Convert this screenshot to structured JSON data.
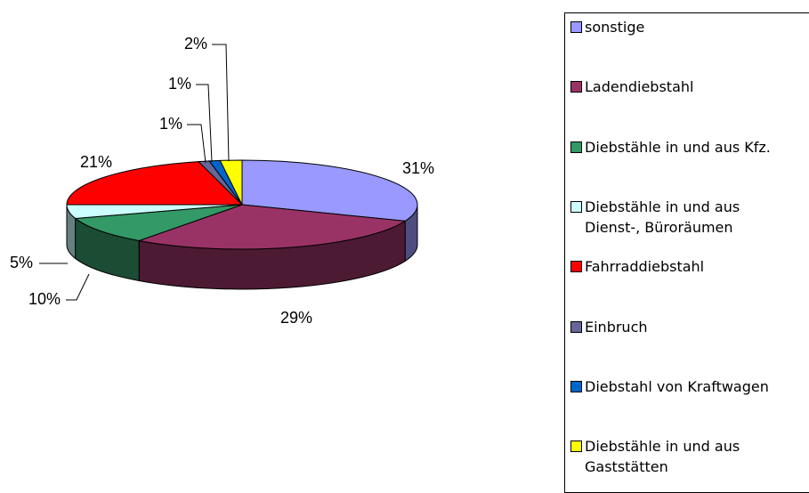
{
  "chart_data": {
    "type": "pie",
    "categories": [
      "sonstige",
      "Ladendiebstahl",
      "Diebstähle in und aus Kfz.",
      "Diebstähle in und aus Dienst-, Büroräumen",
      "Fahrraddiebstahl",
      "Einbruch",
      "Diebstahl von Kraftwagen",
      "Diebstähle in und aus Gaststätten"
    ],
    "values": [
      31,
      29,
      10,
      5,
      21,
      1,
      1,
      2
    ],
    "value_labels": [
      "31%",
      "29%",
      "10%",
      "5%",
      "21%",
      "1%",
      "1%",
      "2%"
    ],
    "colors": [
      "#9999ff",
      "#993366",
      "#339966",
      "#ccffff",
      "#ff0000",
      "#666699",
      "#0066cc",
      "#ffff00"
    ],
    "legend": "right"
  }
}
